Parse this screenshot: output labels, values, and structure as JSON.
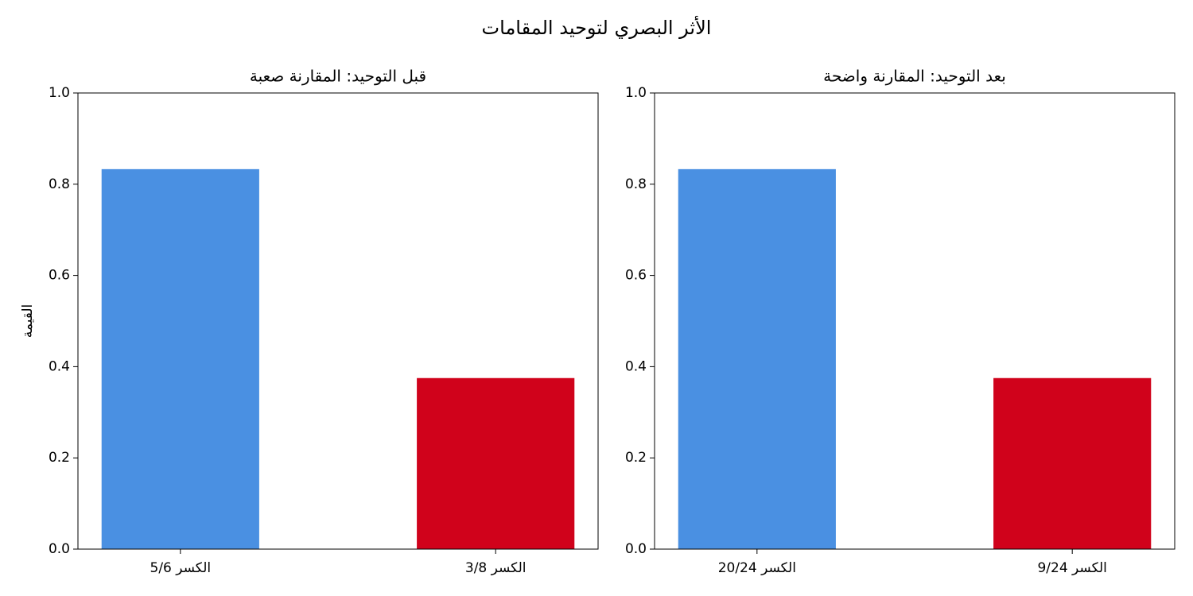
{
  "title": "الأثر البصري لتوحيد المقامات",
  "chart_data": [
    {
      "type": "bar",
      "title": "قبل التوحيد: المقارنة صعبة",
      "ylabel": "القيمة",
      "categories": [
        "الكسر 5/6",
        "الكسر 3/8"
      ],
      "values": [
        0.833,
        0.375
      ],
      "colors": [
        "#4a90e2",
        "#d0021b"
      ],
      "ylim": [
        0,
        1
      ],
      "yticks": [
        {
          "value": 0,
          "label": "0.0"
        },
        0.2,
        0.4,
        0.6,
        0.8,
        {
          "value": 1,
          "label": "1.0"
        }
      ]
    },
    {
      "type": "bar",
      "title": "بعد التوحيد: المقارنة واضحة",
      "categories": [
        "الكسر 20/24",
        "الكسر 9/24"
      ],
      "values": [
        0.833,
        0.375
      ],
      "colors": [
        "#4a90e2",
        "#d0021b"
      ],
      "ylim": [
        0,
        1
      ],
      "yticks": [
        {
          "value": 0,
          "label": "0.0"
        },
        0.2,
        0.4,
        0.6,
        0.8,
        {
          "value": 1,
          "label": "1.0"
        }
      ]
    }
  ]
}
